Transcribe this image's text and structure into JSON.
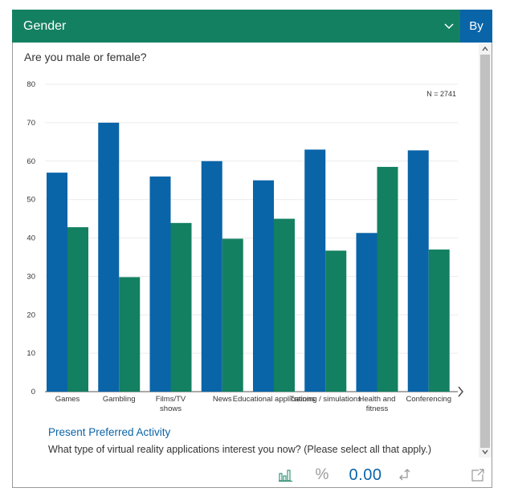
{
  "header": {
    "title": "Gender",
    "by_label": "By"
  },
  "question": "Are you male or female?",
  "chart_data": {
    "type": "bar",
    "n_label": "N = 2741",
    "ylim": [
      0,
      80
    ],
    "yticks": [
      0,
      10,
      20,
      30,
      40,
      50,
      60,
      70,
      80
    ],
    "categories": [
      [
        "Games"
      ],
      [
        "Gambling"
      ],
      [
        "Films/TV",
        "shows"
      ],
      [
        "News"
      ],
      [
        "Educational applications"
      ],
      [
        "Training / simulations"
      ],
      [
        "Health and",
        "fitness"
      ],
      [
        "Conferencing"
      ]
    ],
    "series": [
      {
        "color": "#0a64a8",
        "values": [
          57,
          70,
          56,
          60,
          55,
          63,
          41.3,
          62.8
        ]
      },
      {
        "color": "#138061",
        "values": [
          42.8,
          29.8,
          43.9,
          39.8,
          45,
          36.7,
          58.5,
          37
        ]
      }
    ]
  },
  "section": {
    "title": "Present Preferred Activity",
    "question": "What type of virtual reality applications interest you now? (Please select all that apply.)"
  },
  "footer": {
    "percent_symbol": "%",
    "decimal_value": "0.00"
  },
  "colors": {
    "accent_green": "#138061",
    "accent_blue": "#0a64a8"
  }
}
